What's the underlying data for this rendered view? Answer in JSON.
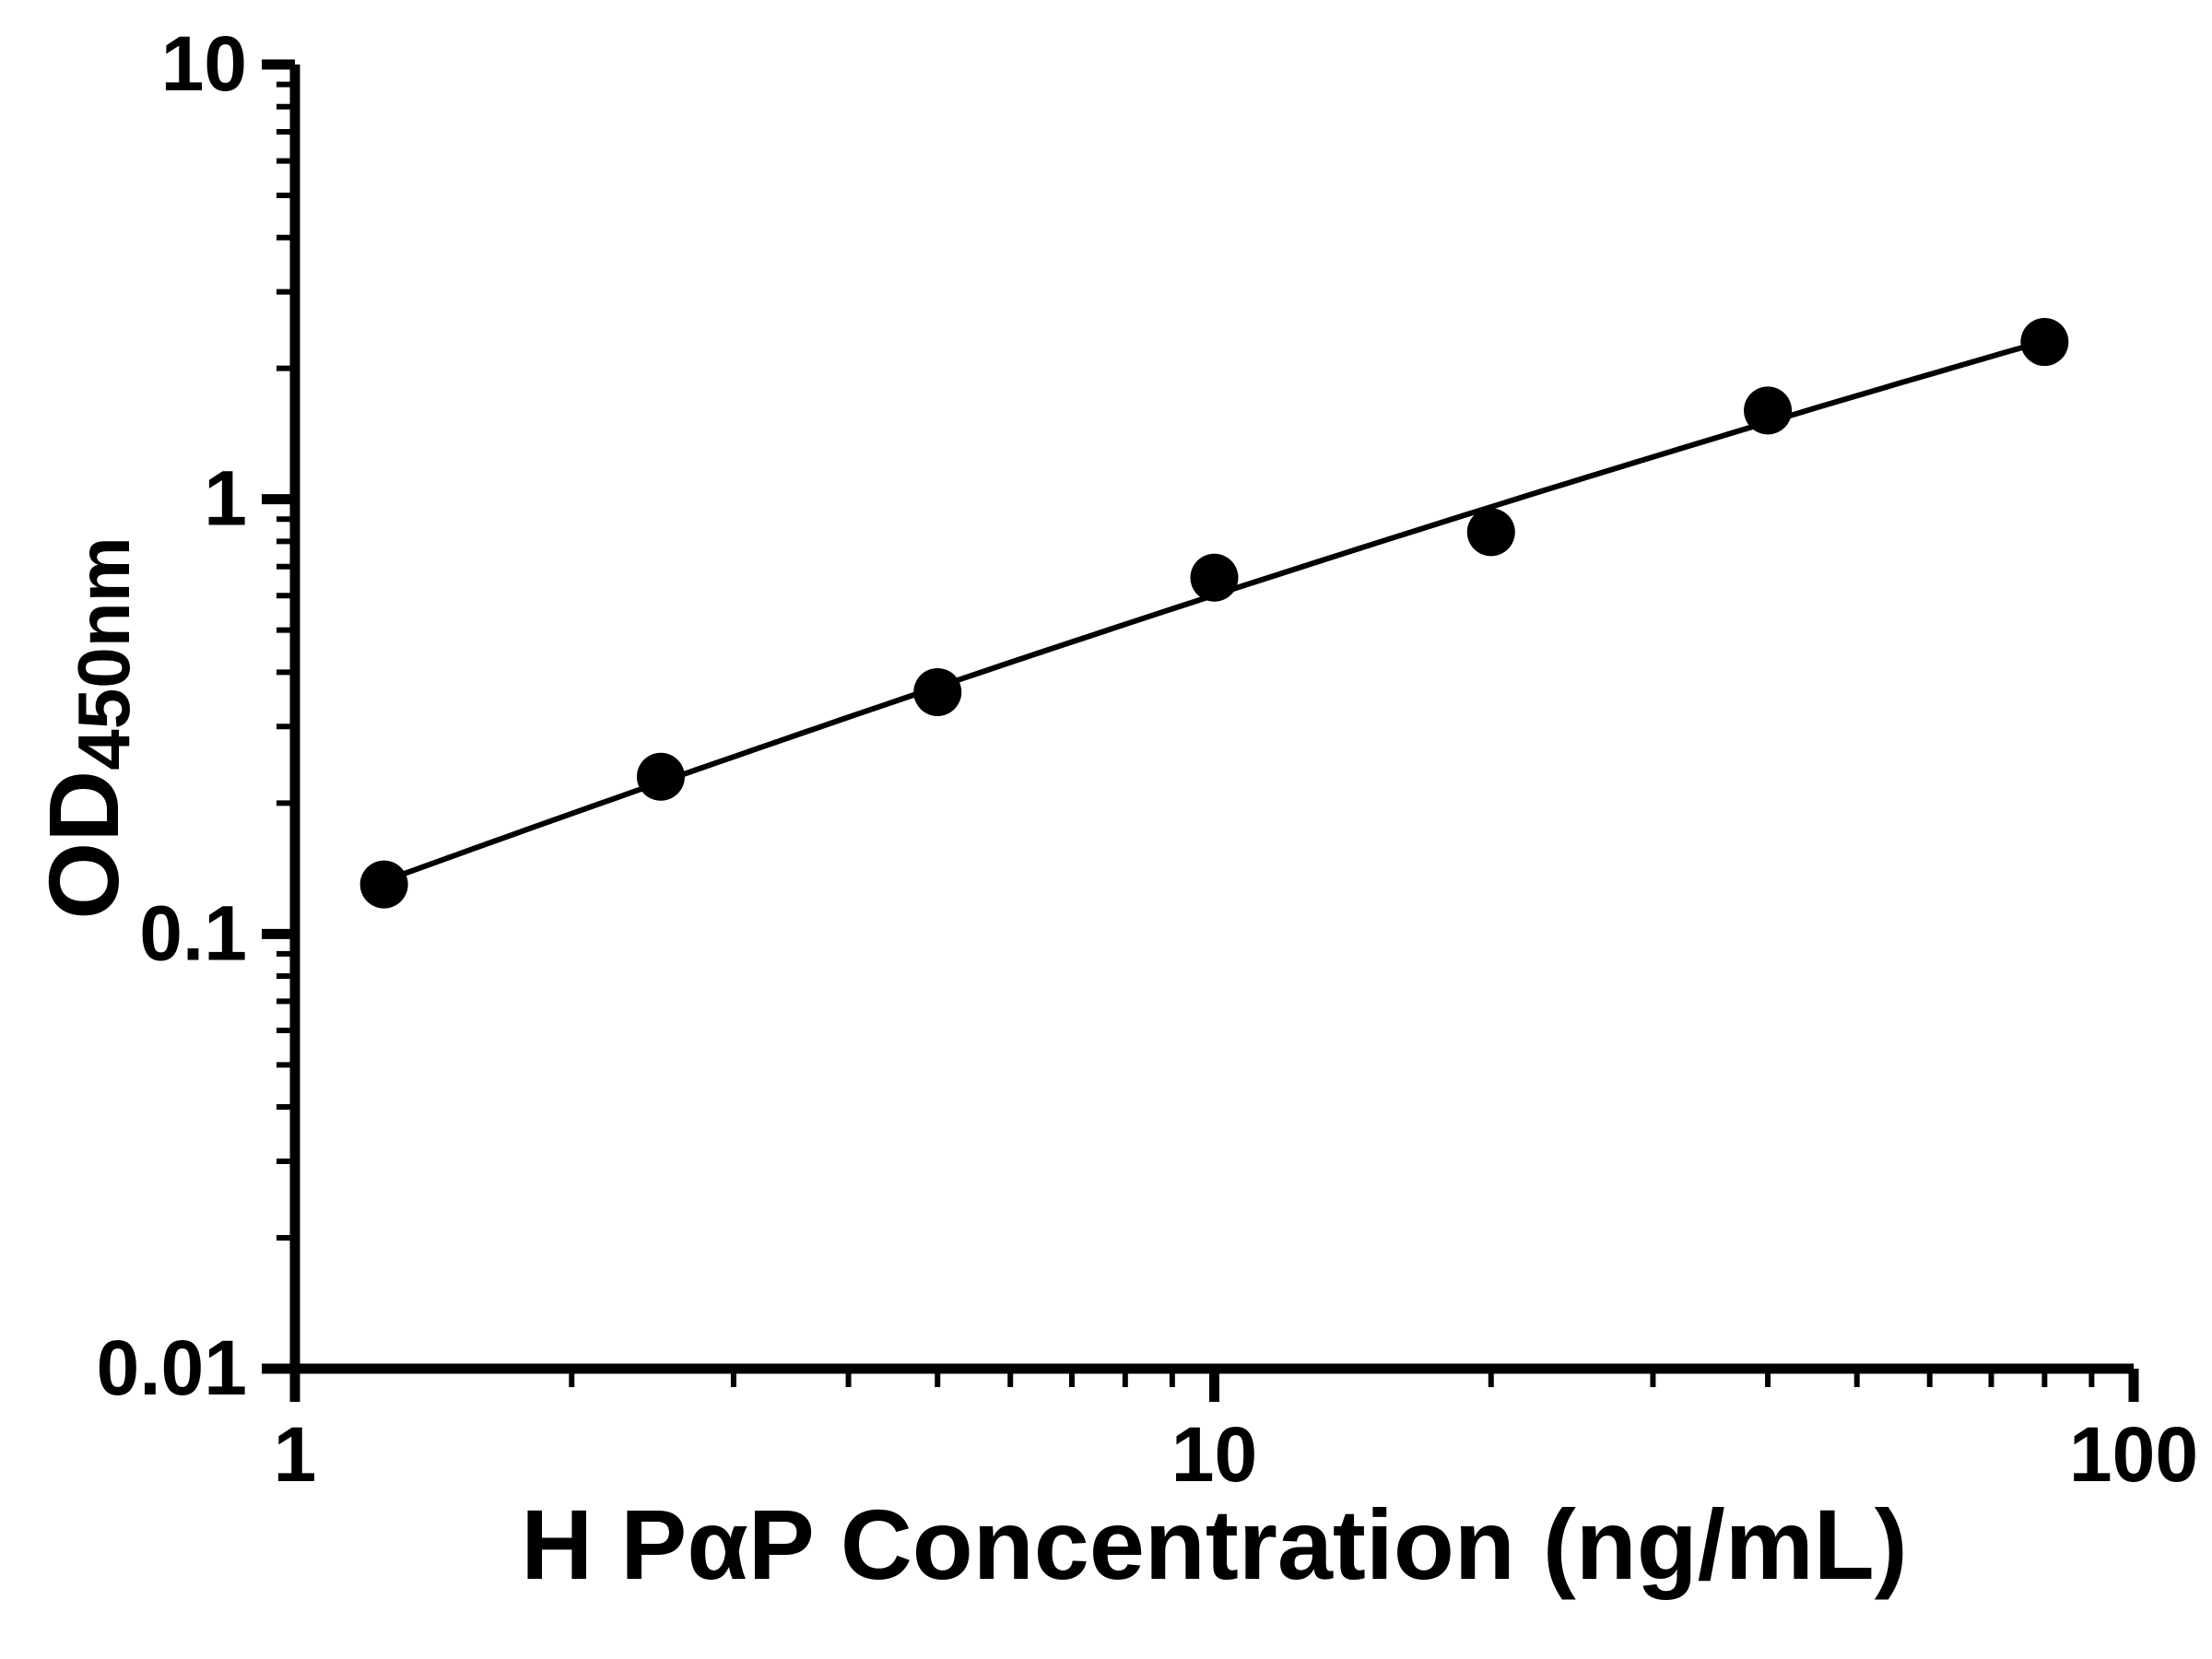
{
  "figure": {
    "background": "#ffffff",
    "axis_color": "#000000"
  },
  "chart_data": {
    "type": "scatter",
    "xlabel": "H PαP Concentration (ng/mL)",
    "ylabel": {
      "base": "OD",
      "subscript": "450nm"
    },
    "x_scale": "log",
    "y_scale": "log",
    "xlim": [
      1,
      100
    ],
    "ylim": [
      0.01,
      10
    ],
    "grid": false,
    "x_ticks": [
      {
        "value": 1,
        "label": "1"
      },
      {
        "value": 10,
        "label": "10"
      },
      {
        "value": 100,
        "label": "100"
      }
    ],
    "y_ticks": [
      {
        "value": 10,
        "label": "10"
      },
      {
        "value": 1,
        "label": "1"
      },
      {
        "value": 0.1,
        "label": "0.1"
      },
      {
        "value": 0.01,
        "label": "0.01"
      }
    ],
    "series": [
      {
        "name": "standard-curve",
        "marker": "filled-circle",
        "color": "#000000",
        "fit": "quadratic-loglog",
        "points": [
          {
            "x": 1.25,
            "y": 0.13
          },
          {
            "x": 2.5,
            "y": 0.23
          },
          {
            "x": 5,
            "y": 0.36
          },
          {
            "x": 10,
            "y": 0.66
          },
          {
            "x": 20,
            "y": 0.84
          },
          {
            "x": 40,
            "y": 1.6
          },
          {
            "x": 80,
            "y": 2.3
          }
        ]
      }
    ]
  }
}
